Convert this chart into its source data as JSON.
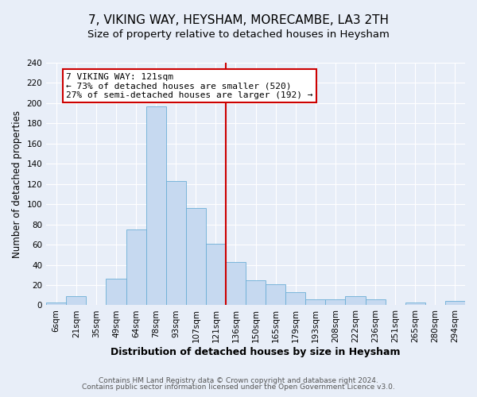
{
  "title": "7, VIKING WAY, HEYSHAM, MORECAMBE, LA3 2TH",
  "subtitle": "Size of property relative to detached houses in Heysham",
  "xlabel": "Distribution of detached houses by size in Heysham",
  "ylabel": "Number of detached properties",
  "categories": [
    "6sqm",
    "21sqm",
    "35sqm",
    "49sqm",
    "64sqm",
    "78sqm",
    "93sqm",
    "107sqm",
    "121sqm",
    "136sqm",
    "150sqm",
    "165sqm",
    "179sqm",
    "193sqm",
    "208sqm",
    "222sqm",
    "236sqm",
    "251sqm",
    "265sqm",
    "280sqm",
    "294sqm"
  ],
  "bar_values": [
    3,
    9,
    0,
    26,
    75,
    197,
    123,
    96,
    61,
    43,
    25,
    21,
    13,
    6,
    6,
    9,
    6,
    0,
    3,
    0,
    4
  ],
  "bar_color": "#c6d9f0",
  "bar_edge_color": "#6baed6",
  "vline_x": 8.5,
  "vline_color": "#cc0000",
  "annotation_box_line1": "7 VIKING WAY: 121sqm",
  "annotation_box_line2": "← 73% of detached houses are smaller (520)",
  "annotation_box_line3": "27% of semi-detached houses are larger (192) →",
  "annotation_box_color": "#cc0000",
  "ylim": [
    0,
    240
  ],
  "yticks": [
    0,
    20,
    40,
    60,
    80,
    100,
    120,
    140,
    160,
    180,
    200,
    220,
    240
  ],
  "bg_color": "#e8eef8",
  "grid_color": "#ffffff",
  "footer_line1": "Contains HM Land Registry data © Crown copyright and database right 2024.",
  "footer_line2": "Contains public sector information licensed under the Open Government Licence v3.0.",
  "title_fontsize": 11,
  "subtitle_fontsize": 9.5,
  "xlabel_fontsize": 9,
  "ylabel_fontsize": 8.5,
  "tick_fontsize": 7.5,
  "annotation_fontsize": 8,
  "footer_fontsize": 6.5
}
